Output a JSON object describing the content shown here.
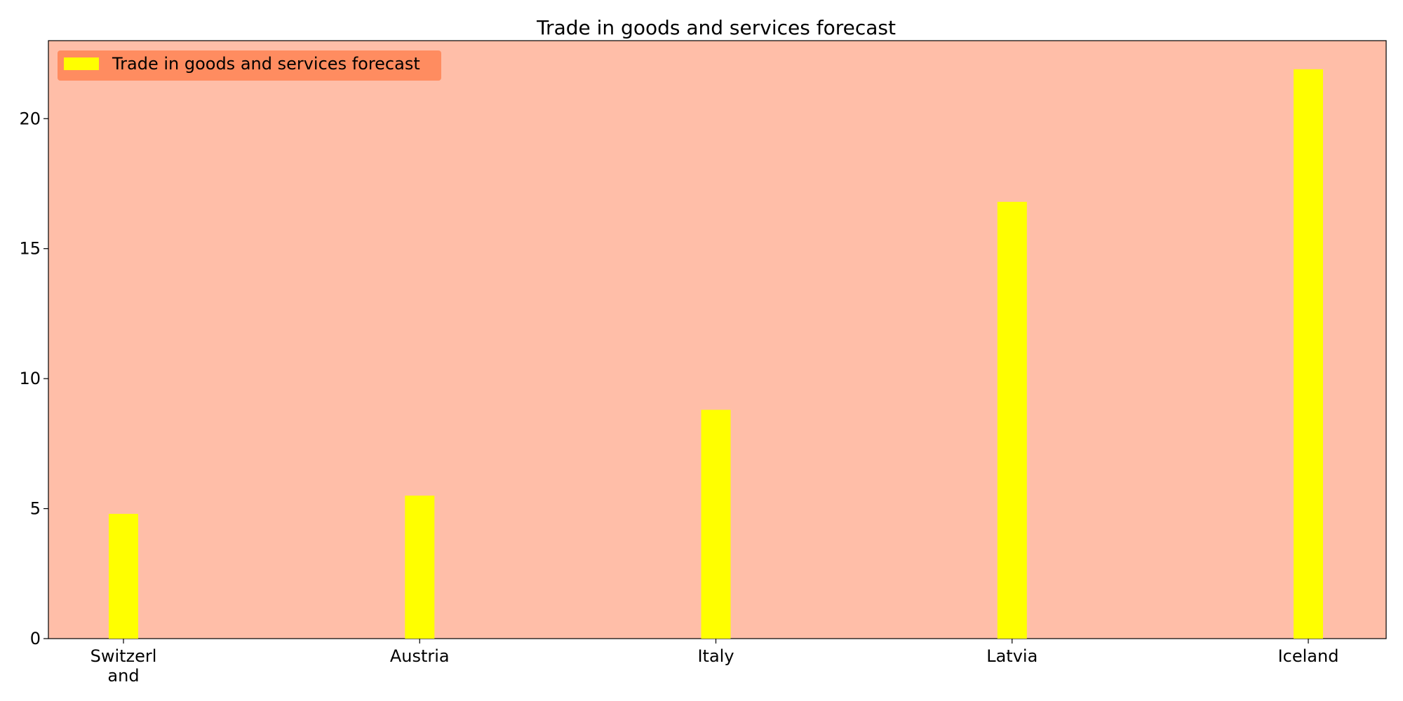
{
  "chart_data": {
    "type": "bar",
    "title": "Trade in goods and services forecast",
    "xlabel": "",
    "ylabel": "",
    "categories": [
      "Switzerland",
      "Austria",
      "Italy",
      "Latvia",
      "Iceland"
    ],
    "category_display": [
      [
        "Switzerl",
        "and"
      ],
      [
        "Austria"
      ],
      [
        "Italy"
      ],
      [
        "Latvia"
      ],
      [
        "Iceland"
      ]
    ],
    "series": [
      {
        "name": "Trade in goods and services forecast",
        "values": [
          4.8,
          5.5,
          8.8,
          16.8,
          21.9
        ],
        "color": "#ffff00"
      }
    ],
    "ylim": [
      0,
      23
    ],
    "yticks": [
      0,
      5,
      10,
      15,
      20
    ],
    "grid": false,
    "legend_position": "top-left",
    "colors": {
      "plot_background": "#ffbea8",
      "legend_background": "#ff8c60",
      "axis": "#000000"
    }
  }
}
